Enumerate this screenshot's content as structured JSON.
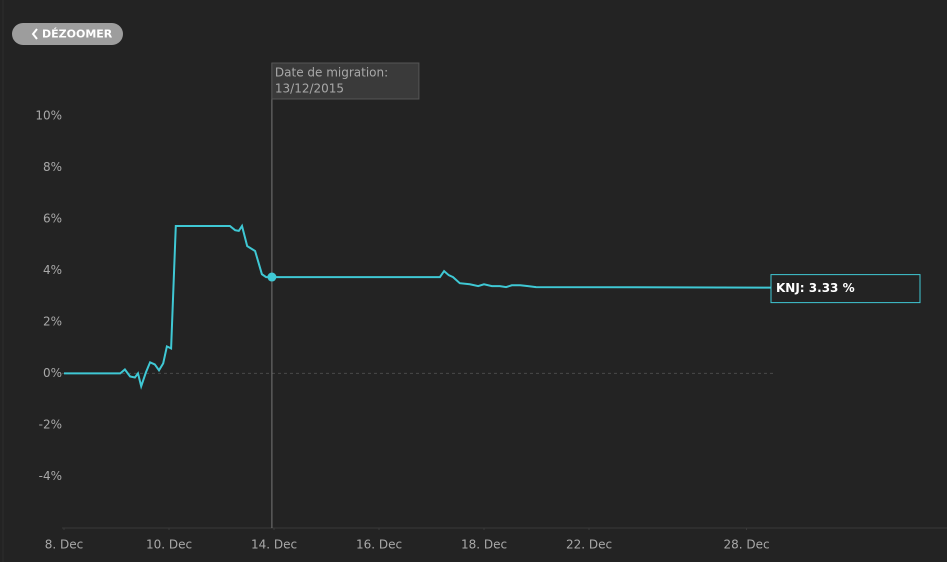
{
  "button": {
    "label": "DÉZOOMER"
  },
  "chart_data": {
    "type": "line",
    "series": [
      {
        "name": "KNJ",
        "color": "#3fc8d4",
        "x": [
          0,
          1.07,
          1.16,
          1.26,
          1.35,
          1.41,
          1.47,
          1.56,
          1.64,
          1.73,
          1.81,
          1.89,
          1.96,
          2.04,
          2.13,
          3.16,
          3.26,
          3.33,
          3.39,
          3.49,
          3.64,
          3.77,
          3.85,
          3.96,
          7.16,
          7.24,
          7.33,
          7.41,
          7.54,
          7.73,
          7.89,
          8.0,
          8.15,
          8.3,
          8.42,
          8.53,
          8.69,
          8.84,
          8.99,
          13.5
        ],
        "values": [
          0,
          0,
          0.15,
          -0.12,
          -0.16,
          0,
          -0.5,
          0.04,
          0.43,
          0.35,
          0.12,
          0.39,
          1.05,
          0.97,
          5.72,
          5.72,
          5.56,
          5.53,
          5.72,
          4.94,
          4.75,
          3.85,
          3.74,
          3.74,
          3.74,
          3.97,
          3.81,
          3.74,
          3.5,
          3.46,
          3.39,
          3.46,
          3.39,
          3.39,
          3.35,
          3.42,
          3.42,
          3.39,
          3.35,
          3.33
        ]
      }
    ],
    "end_label": {
      "text": "KNJ: 3.33 %",
      "value": 3.33
    },
    "migration": {
      "label": "Date de migration:",
      "date": "13/12/2015",
      "x": 3.96,
      "value": 3.74
    },
    "xlim": [
      0,
      16.8
    ],
    "xticks": [
      {
        "value": 0,
        "label": "8. Dec"
      },
      {
        "value": 2,
        "label": "10. Dec"
      },
      {
        "value": 4,
        "label": "14. Dec"
      },
      {
        "value": 6,
        "label": "16. Dec"
      },
      {
        "value": 8,
        "label": "18. Dec"
      },
      {
        "value": 10,
        "label": "22. Dec"
      },
      {
        "value": 13,
        "label": "28. Dec"
      }
    ],
    "ylim": [
      -6,
      11
    ],
    "yticks": [
      {
        "value": -4,
        "label": "-4%"
      },
      {
        "value": -2,
        "label": "-2%"
      },
      {
        "value": 0,
        "label": "0%"
      },
      {
        "value": 2,
        "label": "2%"
      },
      {
        "value": 4,
        "label": "4%"
      },
      {
        "value": 6,
        "label": "6%"
      },
      {
        "value": 8,
        "label": "8%"
      },
      {
        "value": 10,
        "label": "10%"
      }
    ]
  }
}
